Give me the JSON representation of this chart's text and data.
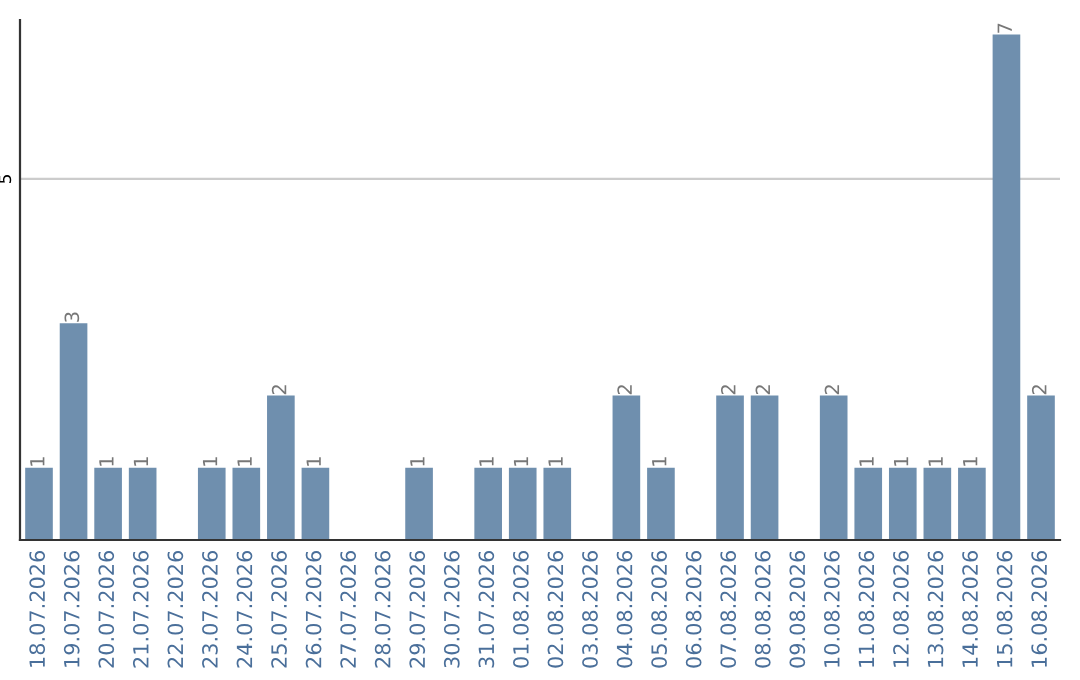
{
  "chart_data": {
    "type": "bar",
    "categories": [
      "18.07.2026",
      "19.07.2026",
      "20.07.2026",
      "21.07.2026",
      "22.07.2026",
      "23.07.2026",
      "24.07.2026",
      "25.07.2026",
      "26.07.2026",
      "27.07.2026",
      "28.07.2026",
      "29.07.2026",
      "30.07.2026",
      "31.07.2026",
      "01.08.2026",
      "02.08.2026",
      "03.08.2026",
      "04.08.2026",
      "05.08.2026",
      "06.08.2026",
      "07.08.2026",
      "08.08.2026",
      "09.08.2026",
      "10.08.2026",
      "11.08.2026",
      "12.08.2026",
      "13.08.2026",
      "14.08.2026",
      "15.08.2026",
      "16.08.2026"
    ],
    "values": [
      1,
      3,
      1,
      1,
      0,
      1,
      1,
      2,
      1,
      0,
      0,
      1,
      0,
      1,
      1,
      1,
      0,
      2,
      1,
      0,
      2,
      2,
      0,
      2,
      1,
      1,
      1,
      1,
      7,
      2
    ],
    "value_labels": [
      "1",
      "3",
      "1",
      "1",
      null,
      "1",
      "1",
      "2",
      "1",
      null,
      null,
      "1",
      null,
      "1",
      "1",
      "1",
      null,
      "2",
      "1",
      null,
      "2",
      "2",
      null,
      "2",
      "1",
      "1",
      "1",
      "1",
      "7",
      "2"
    ],
    "color": "#6f8fae",
    "ylim": [
      0,
      7.2
    ],
    "yticks": [
      5
    ],
    "grid": "y"
  }
}
